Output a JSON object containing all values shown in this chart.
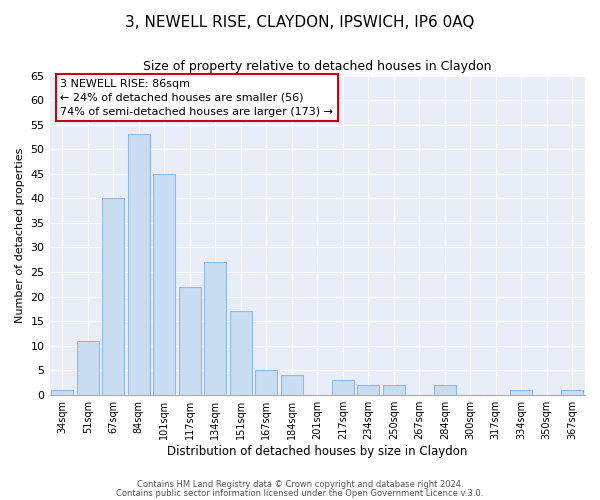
{
  "title": "3, NEWELL RISE, CLAYDON, IPSWICH, IP6 0AQ",
  "subtitle": "Size of property relative to detached houses in Claydon",
  "xlabel": "Distribution of detached houses by size in Claydon",
  "ylabel": "Number of detached properties",
  "bar_color": "#c9ddf2",
  "bar_edge_color": "#90b8e0",
  "categories": [
    "34sqm",
    "51sqm",
    "67sqm",
    "84sqm",
    "101sqm",
    "117sqm",
    "134sqm",
    "151sqm",
    "167sqm",
    "184sqm",
    "201sqm",
    "217sqm",
    "234sqm",
    "250sqm",
    "267sqm",
    "284sqm",
    "300sqm",
    "317sqm",
    "334sqm",
    "350sqm",
    "367sqm"
  ],
  "values": [
    1,
    11,
    40,
    53,
    45,
    22,
    27,
    17,
    5,
    4,
    0,
    3,
    2,
    2,
    0,
    2,
    0,
    0,
    1,
    0,
    1
  ],
  "ylim": [
    0,
    65
  ],
  "yticks": [
    0,
    5,
    10,
    15,
    20,
    25,
    30,
    35,
    40,
    45,
    50,
    55,
    60,
    65
  ],
  "annotation_title": "3 NEWELL RISE: 86sqm",
  "annotation_line1": "← 24% of detached houses are smaller (56)",
  "annotation_line2": "74% of semi-detached houses are larger (173) →",
  "annotation_box_color": "#ffffff",
  "annotation_border_color": "#cc0000",
  "footer1": "Contains HM Land Registry data © Crown copyright and database right 2024.",
  "footer2": "Contains public sector information licensed under the Open Government Licence v.3.0.",
  "fig_bg_color": "#ffffff",
  "plot_bg_color": "#e8eef8",
  "grid_color": "#ffffff"
}
